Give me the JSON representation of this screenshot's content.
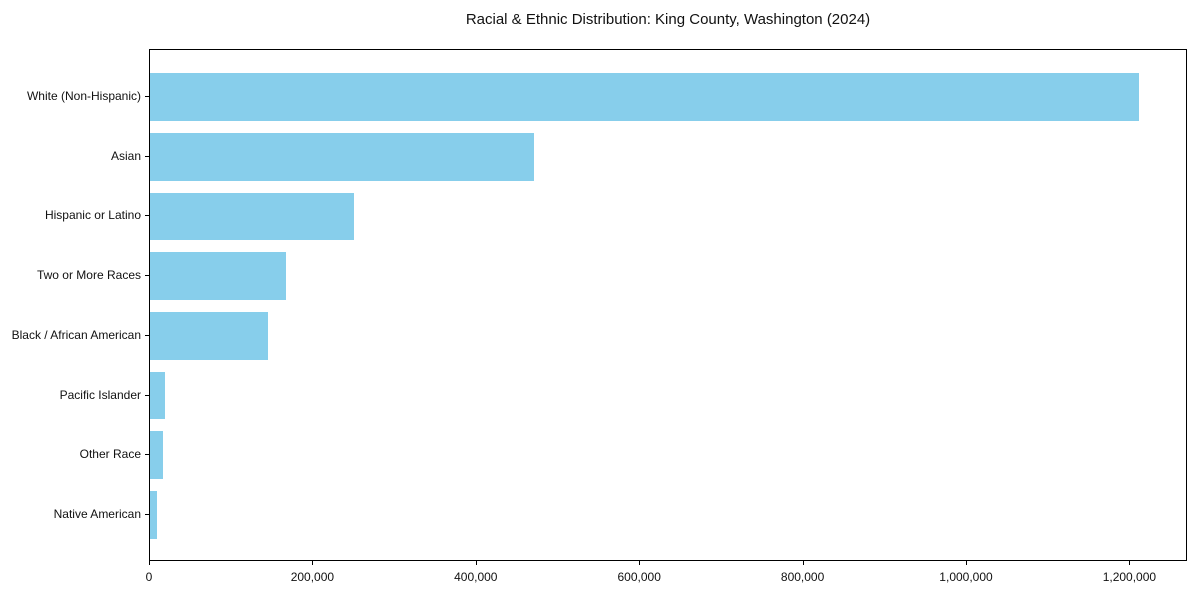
{
  "chart_data": {
    "type": "bar",
    "orientation": "horizontal",
    "title": "Racial & Ethnic Distribution: King County, Washington (2024)",
    "xlabel": "",
    "ylabel": "",
    "categories": [
      "White (Non-Hispanic)",
      "Asian",
      "Hispanic or Latino",
      "Two or More Races",
      "Black / African American",
      "Pacific Islander",
      "Other Race",
      "Native American"
    ],
    "values": [
      1210000,
      470000,
      250000,
      166000,
      145000,
      18000,
      16000,
      8500
    ],
    "xlim": [
      0,
      1270500
    ],
    "x_ticks": {
      "values": [
        0,
        200000,
        400000,
        600000,
        800000,
        1000000,
        1200000
      ],
      "labels": [
        "0",
        "200,000",
        "400,000",
        "600,000",
        "800,000",
        "1,000,000",
        "1,200,000"
      ]
    },
    "bar_color": "#87CEEB",
    "frame_color": "#000000",
    "text_color": "#111111",
    "grid": false,
    "legend": null
  }
}
